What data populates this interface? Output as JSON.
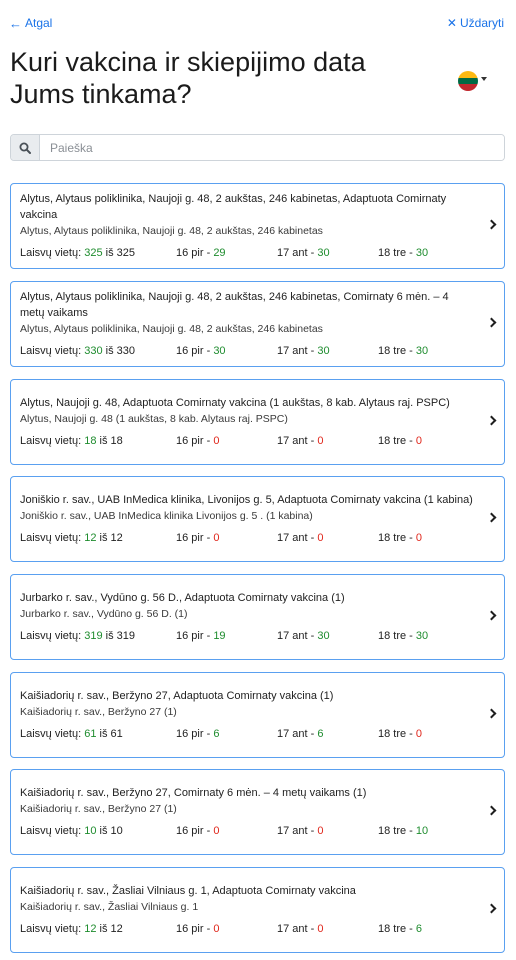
{
  "nav": {
    "back_label": "Atgal",
    "close_label": "Uždaryti"
  },
  "page": {
    "title": "Kuri vakcina ir skiepijimo data Jums tinkama?"
  },
  "language": {
    "icon": "flag-lithuania-icon",
    "colors": [
      "#fdb913",
      "#006a44",
      "#c1272d"
    ]
  },
  "search": {
    "placeholder": "Paieška",
    "value": ""
  },
  "colors": {
    "accent": "#1a73e8",
    "card_border": "#5aa0f0",
    "available": "#1e8c2e",
    "unavailable": "#e0261b"
  },
  "cards": [
    {
      "title": "Alytus, Alytaus poliklinika, Naujoji g. 48, 2 aukštas, 246 kabinetas, Adaptuota Comirnaty vakcina",
      "subtitle": "Alytus, Alytaus poliklinika, Naujoji g. 48, 2 aukštas, 246 kabinetas",
      "avail_label": "Laisvų vietų:",
      "avail_free": "325",
      "avail_of": "iš",
      "avail_total": "325",
      "days": [
        {
          "label": "16 pir -",
          "value": "29"
        },
        {
          "label": "17 ant -",
          "value": "30"
        },
        {
          "label": "18 tre -",
          "value": "30"
        }
      ]
    },
    {
      "title": "Alytus, Alytaus poliklinika, Naujoji g. 48, 2 aukštas, 246 kabinetas, Comirnaty 6 mėn. – 4 metų vaikams",
      "subtitle": "Alytus, Alytaus poliklinika, Naujoji g. 48, 2 aukštas, 246 kabinetas",
      "avail_label": "Laisvų vietų:",
      "avail_free": "330",
      "avail_of": "iš",
      "avail_total": "330",
      "days": [
        {
          "label": "16 pir -",
          "value": "30"
        },
        {
          "label": "17 ant -",
          "value": "30"
        },
        {
          "label": "18 tre -",
          "value": "30"
        }
      ]
    },
    {
      "title": "Alytus, Naujoji g. 48, Adaptuota Comirnaty vakcina (1 aukštas, 8 kab. Alytaus raj. PSPC)",
      "subtitle": "Alytus, Naujoji g. 48 (1 aukštas, 8 kab. Alytaus raj. PSPC)",
      "avail_label": "Laisvų vietų:",
      "avail_free": "18",
      "avail_of": "iš",
      "avail_total": "18",
      "days": [
        {
          "label": "16 pir -",
          "value": "0"
        },
        {
          "label": "17 ant -",
          "value": "0"
        },
        {
          "label": "18 tre -",
          "value": "0"
        }
      ]
    },
    {
      "title": "Joniškio r. sav., UAB InMedica klinika, Livonijos g. 5, Adaptuota Comirnaty vakcina (1 kabina)",
      "subtitle": "Joniškio r. sav., UAB InMedica klinika Livonijos g. 5 . (1 kabina)",
      "avail_label": "Laisvų vietų:",
      "avail_free": "12",
      "avail_of": "iš",
      "avail_total": "12",
      "days": [
        {
          "label": "16 pir -",
          "value": "0"
        },
        {
          "label": "17 ant -",
          "value": "0"
        },
        {
          "label": "18 tre -",
          "value": "0"
        }
      ]
    },
    {
      "title": "Jurbarko r. sav., Vydūno g. 56 D., Adaptuota Comirnaty vakcina (1)",
      "subtitle": "Jurbarko r. sav., Vydūno g. 56 D. (1)",
      "avail_label": "Laisvų vietų:",
      "avail_free": "319",
      "avail_of": "iš",
      "avail_total": "319",
      "days": [
        {
          "label": "16 pir -",
          "value": "19"
        },
        {
          "label": "17 ant -",
          "value": "30"
        },
        {
          "label": "18 tre -",
          "value": "30"
        }
      ]
    },
    {
      "title": "Kaišiadorių r. sav., Beržyno 27, Adaptuota Comirnaty vakcina (1)",
      "subtitle": "Kaišiadorių r. sav., Beržyno 27 (1)",
      "avail_label": "Laisvų vietų:",
      "avail_free": "61",
      "avail_of": "iš",
      "avail_total": "61",
      "days": [
        {
          "label": "16 pir -",
          "value": "6"
        },
        {
          "label": "17 ant -",
          "value": "6"
        },
        {
          "label": "18 tre -",
          "value": "0"
        }
      ]
    },
    {
      "title": "Kaišiadorių r. sav., Beržyno 27, Comirnaty 6 mėn. – 4 metų vaikams (1)",
      "subtitle": "Kaišiadorių r. sav., Beržyno 27 (1)",
      "avail_label": "Laisvų vietų:",
      "avail_free": "10",
      "avail_of": "iš",
      "avail_total": "10",
      "days": [
        {
          "label": "16 pir -",
          "value": "0"
        },
        {
          "label": "17 ant -",
          "value": "0"
        },
        {
          "label": "18 tre -",
          "value": "10"
        }
      ]
    },
    {
      "title": "Kaišiadorių r. sav., Žasliai Vilniaus g. 1, Adaptuota Comirnaty vakcina",
      "subtitle": "Kaišiadorių r. sav., Žasliai Vilniaus g. 1",
      "avail_label": "Laisvų vietų:",
      "avail_free": "12",
      "avail_of": "iš",
      "avail_total": "12",
      "days": [
        {
          "label": "16 pir -",
          "value": "0"
        },
        {
          "label": "17 ant -",
          "value": "0"
        },
        {
          "label": "18 tre -",
          "value": "6"
        }
      ]
    }
  ]
}
